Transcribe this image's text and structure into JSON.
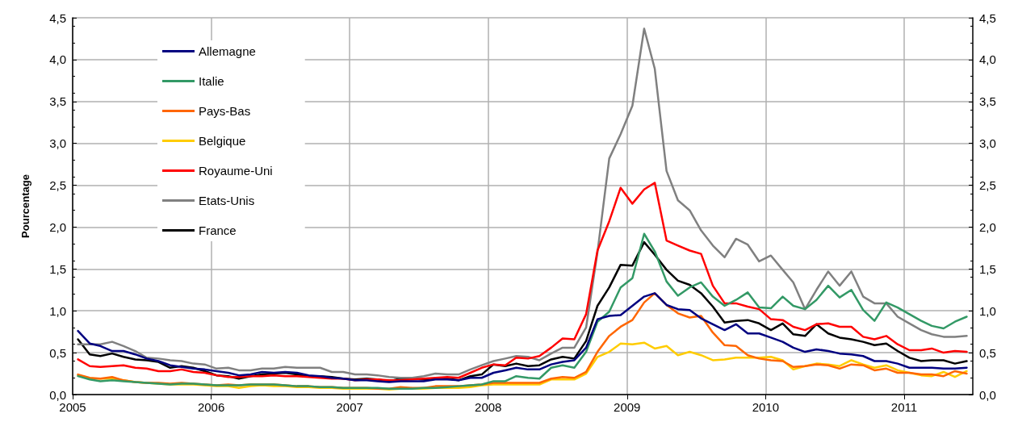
{
  "chart_data": {
    "type": "line",
    "ylabel": "Pourcentage",
    "x": [
      "2005-01-15",
      "2005-02-15",
      "2005-03-15",
      "2005-04-15",
      "2005-05-15",
      "2005-06-15",
      "2005-07-15",
      "2005-08-15",
      "2005-09-15",
      "2005-10-15",
      "2005-11-15",
      "2005-12-15",
      "2006-01-15",
      "2006-02-15",
      "2006-03-15",
      "2006-04-15",
      "2006-05-15",
      "2006-06-15",
      "2006-07-15",
      "2006-08-15",
      "2006-09-15",
      "2006-10-15",
      "2006-11-15",
      "2006-12-15",
      "2007-01-15",
      "2007-02-15",
      "2007-03-15",
      "2007-04-15",
      "2007-05-15",
      "2007-06-15",
      "2007-07-15",
      "2007-08-15",
      "2007-09-15",
      "2007-10-15",
      "2007-11-15",
      "2007-12-15",
      "2008-01-15",
      "2008-02-15",
      "2008-03-15",
      "2008-04-15",
      "2008-05-15",
      "2008-06-15",
      "2008-07-15",
      "2008-08-15",
      "2008-09-15",
      "2008-10-15",
      "2008-11-15",
      "2008-12-15",
      "2009-01-15",
      "2009-02-15",
      "2009-03-15",
      "2009-04-15",
      "2009-05-15",
      "2009-06-15",
      "2009-07-15",
      "2009-08-15",
      "2009-09-15",
      "2009-10-15",
      "2009-11-15",
      "2009-12-15",
      "2010-01-15",
      "2010-02-15",
      "2010-03-15",
      "2010-04-15",
      "2010-05-15",
      "2010-06-15",
      "2010-07-15",
      "2010-08-15",
      "2010-09-15",
      "2010-10-15",
      "2010-11-15",
      "2010-12-15",
      "2011-01-15",
      "2011-02-15",
      "2011-03-15",
      "2011-04-15",
      "2011-05-15",
      "2011-06-15"
    ],
    "series": [
      {
        "name": "Allemagne",
        "color": "#000080",
        "values": [
          0.76,
          0.61,
          0.58,
          0.52,
          0.52,
          0.48,
          0.43,
          0.4,
          0.35,
          0.33,
          0.31,
          0.3,
          0.28,
          0.26,
          0.23,
          0.24,
          0.27,
          0.26,
          0.27,
          0.26,
          0.23,
          0.22,
          0.2,
          0.19,
          0.17,
          0.17,
          0.16,
          0.15,
          0.16,
          0.16,
          0.16,
          0.18,
          0.18,
          0.17,
          0.2,
          0.2,
          0.26,
          0.29,
          0.32,
          0.3,
          0.3,
          0.36,
          0.39,
          0.41,
          0.56,
          0.9,
          0.94,
          0.95,
          1.06,
          1.17,
          1.21,
          1.07,
          1.02,
          1.01,
          0.91,
          0.84,
          0.77,
          0.84,
          0.73,
          0.73,
          0.68,
          0.63,
          0.56,
          0.51,
          0.54,
          0.52,
          0.49,
          0.48,
          0.46,
          0.4,
          0.4,
          0.37,
          0.32,
          0.32,
          0.32,
          0.31,
          0.31,
          0.32
        ]
      },
      {
        "name": "Italie",
        "color": "#339966",
        "values": [
          0.22,
          0.18,
          0.16,
          0.17,
          0.16,
          0.15,
          0.14,
          0.13,
          0.12,
          0.13,
          0.13,
          0.12,
          0.11,
          0.11,
          0.11,
          0.12,
          0.12,
          0.12,
          0.11,
          0.1,
          0.1,
          0.09,
          0.09,
          0.08,
          0.08,
          0.08,
          0.08,
          0.07,
          0.07,
          0.07,
          0.08,
          0.08,
          0.09,
          0.1,
          0.11,
          0.12,
          0.16,
          0.16,
          0.22,
          0.2,
          0.19,
          0.32,
          0.35,
          0.32,
          0.51,
          0.87,
          0.99,
          1.28,
          1.39,
          1.92,
          1.71,
          1.35,
          1.18,
          1.28,
          1.34,
          1.17,
          1.06,
          1.13,
          1.22,
          1.04,
          1.03,
          1.17,
          1.06,
          1.02,
          1.13,
          1.3,
          1.16,
          1.25,
          1.01,
          0.88,
          1.1,
          1.04,
          0.96,
          0.88,
          0.82,
          0.79,
          0.87,
          0.93
        ]
      },
      {
        "name": "Pays-Bas",
        "color": "#ff6600",
        "values": [
          0.24,
          0.2,
          0.19,
          0.21,
          0.17,
          0.15,
          0.14,
          0.14,
          0.13,
          0.14,
          0.13,
          0.12,
          0.11,
          0.12,
          0.11,
          0.12,
          0.12,
          0.12,
          0.11,
          0.1,
          0.1,
          0.09,
          0.09,
          0.08,
          0.08,
          0.08,
          0.07,
          0.07,
          0.09,
          0.08,
          0.08,
          0.1,
          0.1,
          0.1,
          0.11,
          0.12,
          0.14,
          0.14,
          0.14,
          0.14,
          0.14,
          0.19,
          0.21,
          0.2,
          0.27,
          0.51,
          0.7,
          0.81,
          0.89,
          1.1,
          1.21,
          1.07,
          0.97,
          0.92,
          0.94,
          0.74,
          0.59,
          0.58,
          0.47,
          0.43,
          0.41,
          0.4,
          0.33,
          0.34,
          0.36,
          0.35,
          0.31,
          0.36,
          0.35,
          0.29,
          0.31,
          0.26,
          0.26,
          0.24,
          0.24,
          0.22,
          0.28,
          0.25
        ]
      },
      {
        "name": "Belgique",
        "color": "#ffcc00",
        "values": [
          0.23,
          0.19,
          0.19,
          0.19,
          0.17,
          0.15,
          0.14,
          0.13,
          0.12,
          0.12,
          0.12,
          0.11,
          0.1,
          0.1,
          0.08,
          0.1,
          0.11,
          0.1,
          0.1,
          0.09,
          0.09,
          0.08,
          0.08,
          0.07,
          0.07,
          0.07,
          0.07,
          0.06,
          0.07,
          0.07,
          0.07,
          0.08,
          0.08,
          0.08,
          0.09,
          0.11,
          0.12,
          0.12,
          0.12,
          0.12,
          0.12,
          0.18,
          0.18,
          0.18,
          0.25,
          0.45,
          0.51,
          0.61,
          0.6,
          0.62,
          0.55,
          0.58,
          0.47,
          0.51,
          0.47,
          0.41,
          0.42,
          0.44,
          0.44,
          0.44,
          0.45,
          0.41,
          0.3,
          0.34,
          0.37,
          0.36,
          0.34,
          0.41,
          0.36,
          0.32,
          0.35,
          0.29,
          0.26,
          0.23,
          0.22,
          0.27,
          0.21,
          0.28
        ]
      },
      {
        "name": "Royaume-Uni",
        "color": "#ff0000",
        "values": [
          0.42,
          0.34,
          0.33,
          0.34,
          0.35,
          0.32,
          0.31,
          0.28,
          0.28,
          0.3,
          0.27,
          0.26,
          0.23,
          0.21,
          0.21,
          0.22,
          0.22,
          0.23,
          0.22,
          0.22,
          0.21,
          0.2,
          0.19,
          0.19,
          0.17,
          0.18,
          0.18,
          0.17,
          0.17,
          0.18,
          0.19,
          0.2,
          0.21,
          0.2,
          0.26,
          0.32,
          0.36,
          0.35,
          0.44,
          0.43,
          0.46,
          0.56,
          0.67,
          0.66,
          0.96,
          1.72,
          2.07,
          2.47,
          2.28,
          2.45,
          2.53,
          1.84,
          1.78,
          1.72,
          1.68,
          1.3,
          1.09,
          1.09,
          1.05,
          1.02,
          0.9,
          0.89,
          0.81,
          0.77,
          0.84,
          0.85,
          0.81,
          0.81,
          0.69,
          0.66,
          0.7,
          0.6,
          0.53,
          0.53,
          0.55,
          0.5,
          0.52,
          0.51
        ]
      },
      {
        "name": "Etats-Unis",
        "color": "#808080",
        "values": [
          0.6,
          0.6,
          0.6,
          0.63,
          0.58,
          0.52,
          0.44,
          0.43,
          0.41,
          0.4,
          0.37,
          0.36,
          0.31,
          0.32,
          0.29,
          0.29,
          0.31,
          0.31,
          0.33,
          0.32,
          0.32,
          0.32,
          0.27,
          0.27,
          0.24,
          0.24,
          0.23,
          0.21,
          0.2,
          0.2,
          0.22,
          0.25,
          0.24,
          0.24,
          0.3,
          0.35,
          0.4,
          0.43,
          0.46,
          0.45,
          0.41,
          0.49,
          0.56,
          0.56,
          0.8,
          1.7,
          2.82,
          3.11,
          3.45,
          4.37,
          3.89,
          2.67,
          2.32,
          2.2,
          1.96,
          1.78,
          1.64,
          1.86,
          1.79,
          1.59,
          1.66,
          1.49,
          1.34,
          1.02,
          1.25,
          1.47,
          1.3,
          1.47,
          1.17,
          1.09,
          1.09,
          0.93,
          0.85,
          0.77,
          0.72,
          0.69,
          0.69,
          0.7
        ]
      },
      {
        "name": "France",
        "color": "#000000",
        "values": [
          0.66,
          0.48,
          0.46,
          0.49,
          0.45,
          0.42,
          0.41,
          0.39,
          0.32,
          0.34,
          0.32,
          0.28,
          0.23,
          0.22,
          0.19,
          0.22,
          0.24,
          0.25,
          0.26,
          0.24,
          0.22,
          0.22,
          0.21,
          0.19,
          0.18,
          0.19,
          0.18,
          0.16,
          0.19,
          0.19,
          0.18,
          0.19,
          0.19,
          0.17,
          0.22,
          0.24,
          0.36,
          0.34,
          0.37,
          0.34,
          0.35,
          0.42,
          0.45,
          0.43,
          0.64,
          1.06,
          1.28,
          1.55,
          1.54,
          1.82,
          1.67,
          1.49,
          1.36,
          1.31,
          1.21,
          1.05,
          0.86,
          0.88,
          0.89,
          0.85,
          0.77,
          0.85,
          0.72,
          0.7,
          0.84,
          0.73,
          0.68,
          0.66,
          0.63,
          0.59,
          0.61,
          0.52,
          0.44,
          0.4,
          0.41,
          0.41,
          0.37,
          0.4
        ]
      }
    ],
    "xlim": [
      "2005-01-01",
      "2011-07-01"
    ],
    "xticks": [
      "2005",
      "2006",
      "2007",
      "2008",
      "2009",
      "2010",
      "2011"
    ],
    "ylim": [
      0,
      4.5
    ],
    "yticks": [
      {
        "value": 0,
        "label": "0,0"
      },
      {
        "value": 0.5,
        "label": "0,5"
      },
      {
        "value": 1,
        "label": "1,0"
      },
      {
        "value": 1.5,
        "label": "1,5"
      },
      {
        "value": 2,
        "label": "2,0"
      },
      {
        "value": 2.5,
        "label": "2,5"
      },
      {
        "value": 3,
        "label": "3,0"
      },
      {
        "value": 3.5,
        "label": "3,5"
      },
      {
        "value": 4,
        "label": "4,0"
      },
      {
        "value": 4.5,
        "label": "4,5"
      }
    ],
    "y2lim": [
      0,
      4.5
    ],
    "y2ticks": [
      {
        "value": 0,
        "label": "0,0"
      },
      {
        "value": 0.5,
        "label": "0,5"
      },
      {
        "value": 1,
        "label": "1,0"
      },
      {
        "value": 1.5,
        "label": "1,5"
      },
      {
        "value": 2,
        "label": "2,0"
      },
      {
        "value": 2.5,
        "label": "2,5"
      },
      {
        "value": 3,
        "label": "3,0"
      },
      {
        "value": 3.5,
        "label": "3,5"
      },
      {
        "value": 4,
        "label": "4,0"
      },
      {
        "value": 4.5,
        "label": "4,5"
      }
    ],
    "grid": true,
    "legend": "top left",
    "marker": "none",
    "line_style": "solid"
  }
}
